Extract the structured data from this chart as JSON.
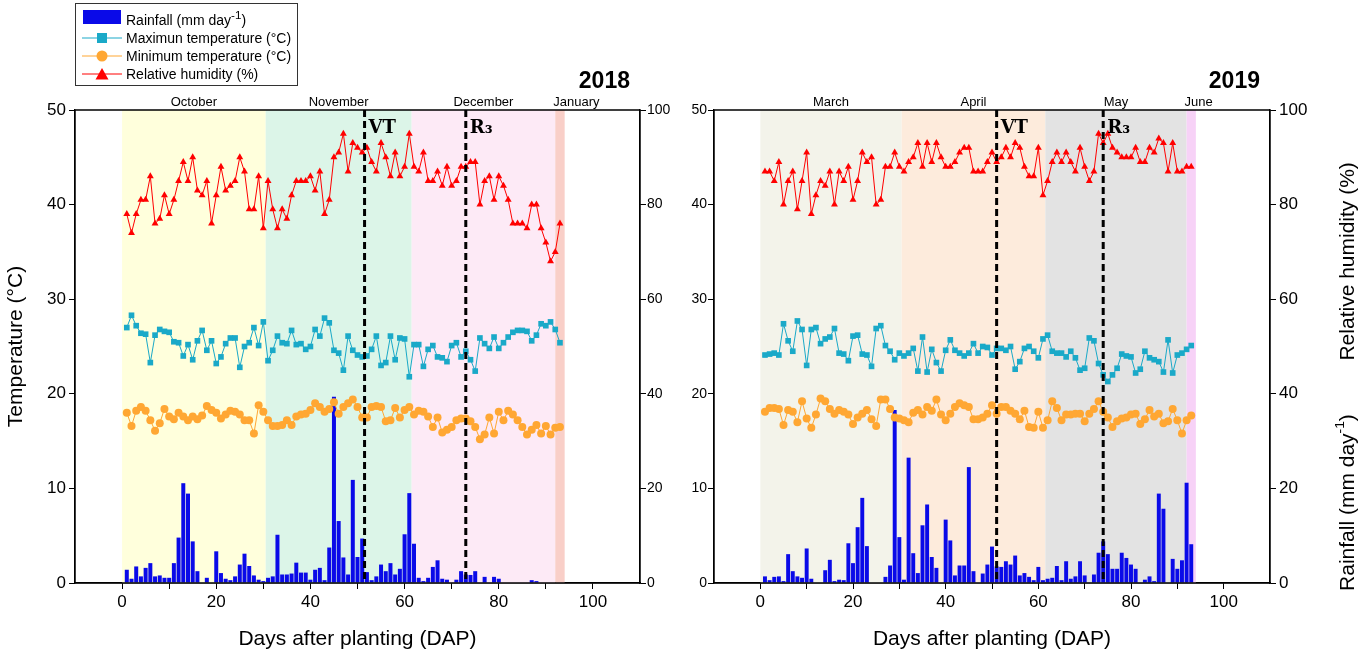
{
  "chart_data": [
    {
      "type": "line",
      "title": "2018",
      "xlabel": "Days after planting (DAP)",
      "ylabel": "Temperature (°C)",
      "legend": "top left",
      "x": [
        1,
        2,
        3,
        4,
        5,
        6,
        7,
        8,
        9,
        10,
        11,
        12,
        13,
        14,
        15,
        16,
        17,
        18,
        19,
        20,
        21,
        22,
        23,
        24,
        25,
        26,
        27,
        28,
        29,
        30,
        31,
        32,
        33,
        34,
        35,
        36,
        37,
        38,
        39,
        40,
        41,
        42,
        43,
        44,
        45,
        46,
        47,
        48,
        49,
        50,
        51,
        52,
        53,
        54,
        55,
        56,
        57,
        58,
        59,
        60,
        61,
        62,
        63,
        64,
        65,
        66,
        67,
        68,
        69,
        70,
        71,
        72,
        73,
        74,
        75,
        76,
        77,
        78,
        79,
        80,
        81,
        82,
        83,
        84,
        85,
        86,
        87,
        88,
        89,
        90,
        91,
        92,
        93
      ],
      "xlim": [
        -10,
        110
      ],
      "xticks": [
        0,
        {
          "value": 10,
          "label": null
        },
        20,
        {
          "value": 30,
          "label": null
        },
        40,
        {
          "value": 50,
          "label": null
        },
        60,
        {
          "value": 70,
          "label": null
        },
        80,
        {
          "value": 90,
          "label": null
        },
        100
      ],
      "ylim": [
        0,
        50
      ],
      "yticks": [
        0,
        10,
        20,
        30,
        40,
        50
      ],
      "y2lim": [
        0,
        100
      ],
      "y2ticks": [
        0,
        20,
        40,
        60,
        80,
        100
      ],
      "series": [
        {
          "name": "Rainfall (mm day$^{-1}$)",
          "type": "bar",
          "axis": "y2",
          "color": "#0a0ae8",
          "values": [
            2.8,
            0.9,
            3.5,
            1.4,
            3.2,
            4.2,
            1.4,
            1.6,
            1.1,
            1.1,
            4.2,
            9.6,
            21.1,
            18.9,
            8.8,
            2.5,
            0,
            1.1,
            null,
            6.7,
            2.1,
            0.9,
            0.6,
            1.4,
            3.9,
            6.2,
            3.6,
            1.6,
            0.7,
            0.4,
            1.1,
            1.4,
            10.2,
            1.8,
            1.8,
            2.0,
            4.3,
            2.2,
            2.2,
            0.7,
            2.8,
            3.2,
            0.6,
            7.5,
            39.4,
            13.1,
            5.4,
            1.8,
            21.8,
            5.5,
            9.4,
            2.3,
            0.6,
            1.4,
            3.9,
            2.5,
            4.2,
            1.8,
            3.0,
            10.3,
            19.0,
            8.3,
            1.1,
            0.4,
            1.1,
            3.4,
            4.8,
            0.9,
            0.7,
            0,
            0.7,
            2.5,
            1.8,
            1.7,
            2.5,
            0,
            1.3,
            0,
            1.3,
            0.9,
            null,
            0,
            0,
            0,
            0,
            0,
            0.6,
            0.4,
            0,
            0,
            0,
            0,
            0
          ]
        },
        {
          "name": "Maximun temperature (°C)",
          "marker": "square",
          "color": "#1aa9c8",
          "values": [
            27.0,
            28.3,
            27.2,
            26.4,
            26.3,
            23.3,
            26.2,
            26.8,
            26.6,
            26.5,
            25.5,
            25.4,
            24.0,
            25.2,
            23.6,
            25.6,
            26.7,
            24.6,
            25.6,
            23.2,
            23.9,
            25.3,
            25.9,
            25.9,
            22.8,
            25.0,
            25.4,
            27.0,
            25.1,
            27.6,
            23.5,
            24.6,
            26.1,
            25.4,
            25.3,
            26.7,
            25.2,
            25.3,
            24.7,
            25.0,
            26.8,
            26.1,
            28.0,
            27.5,
            24.6,
            24.3,
            22.5,
            26.1,
            24.6,
            24.1,
            23.9,
            24.0,
            24.7,
            26.1,
            23.0,
            23.3,
            26.1,
            23.6,
            25.9,
            25.8,
            21.8,
            25.2,
            25.2,
            22.9,
            24.7,
            25.1,
            23.9,
            23.8,
            23.4,
            25.1,
            25.4,
            23.9,
            24.5,
            23.6,
            22.4,
            25.9,
            25.3,
            24.8,
            26.0,
            24.8,
            25.4,
            26.0,
            26.5,
            26.7,
            26.7,
            26.6,
            25.6,
            26.2,
            27.4,
            27.2,
            27.6,
            26.8,
            25.4
          ]
        },
        {
          "name": "Minimum temperature (°C)",
          "marker": "circle",
          "color": "#ffa733",
          "values": [
            18.0,
            16.6,
            18.2,
            18.6,
            18.2,
            17.2,
            16.1,
            16.9,
            18.4,
            17.6,
            17.3,
            18.0,
            17.6,
            17.2,
            17.6,
            17.3,
            17.7,
            18.7,
            18.3,
            18.0,
            17.4,
            17.8,
            18.2,
            18.1,
            17.8,
            17.2,
            17.2,
            15.8,
            18.8,
            18.1,
            17.2,
            16.6,
            16.6,
            16.7,
            17.2,
            16.7,
            17.6,
            17.8,
            17.9,
            18.3,
            19.0,
            18.6,
            18.1,
            18.4,
            19.1,
            17.9,
            18.6,
            19.0,
            19.4,
            18.6,
            17.5,
            17.5,
            18.6,
            18.7,
            18.6,
            17.1,
            17.2,
            18.5,
            17.5,
            18.3,
            18.6,
            17.8,
            18.2,
            18.1,
            17.6,
            16.5,
            17.5,
            15.9,
            16.2,
            16.5,
            17.2,
            17.4,
            17.4,
            17.1,
            16.5,
            15.2,
            15.7,
            17.5,
            15.8,
            18.1,
            17.2,
            18.2,
            17.8,
            17.2,
            16.5,
            15.7,
            16.2,
            16.7,
            15.8,
            16.6,
            15.7,
            16.4,
            16.5
          ]
        },
        {
          "name": "Relative humidity (%)",
          "marker": "triangle",
          "axis": "y2",
          "color": "#ff0000",
          "values": [
            78,
            74,
            78,
            81,
            81,
            86,
            76,
            77,
            82,
            78,
            81,
            85,
            89,
            85,
            90,
            83,
            82,
            85,
            76,
            82,
            88,
            83,
            84,
            85,
            90,
            87,
            79,
            79,
            86,
            75,
            85,
            79,
            75,
            79,
            77,
            82,
            85,
            85,
            85,
            86,
            83,
            87,
            78,
            81,
            90,
            91,
            95,
            87,
            93,
            92,
            91,
            92,
            89,
            87,
            93,
            90,
            86,
            91,
            86,
            88,
            95,
            88,
            87,
            91,
            85,
            85,
            87,
            84,
            88,
            84,
            85,
            88,
            88,
            89,
            89,
            80,
            85,
            86,
            81,
            86,
            84,
            81,
            76,
            76,
            76,
            75,
            80,
            80,
            75,
            72,
            68,
            70,
            76
          ]
        }
      ],
      "bands": [
        {
          "axis": "x",
          "from": 0,
          "to": 30.5,
          "label": "October",
          "color": "#ffffdc"
        },
        {
          "axis": "x",
          "from": 30.5,
          "to": 61.5,
          "label": "November",
          "color": "#dcf5e8"
        },
        {
          "axis": "x",
          "from": 61.5,
          "to": 92,
          "label": "December",
          "color": "#fdeaf6"
        },
        {
          "axis": "x",
          "from": 92,
          "to": 94,
          "label": "January",
          "color": "#f9cfc8"
        }
      ],
      "ref_lines": [
        {
          "axis": "x",
          "value": 51.5,
          "label": "VT",
          "color": "#000000",
          "line_style": "dashed"
        },
        {
          "axis": "x",
          "value": 73,
          "label": "R₃",
          "color": "#000000",
          "line_style": "dashed"
        }
      ]
    },
    {
      "type": "line",
      "title": "2019",
      "xlabel": "Days after planting (DAP)",
      "y2label": "Relative humidity (%)",
      "annotations": [
        "Rainfall (mm day$^{-1}$)"
      ],
      "x": [
        1,
        2,
        3,
        4,
        5,
        6,
        7,
        8,
        9,
        10,
        11,
        12,
        13,
        14,
        15,
        16,
        17,
        18,
        19,
        20,
        21,
        22,
        23,
        24,
        25,
        26,
        27,
        28,
        29,
        30,
        31,
        32,
        33,
        34,
        35,
        36,
        37,
        38,
        39,
        40,
        41,
        42,
        43,
        44,
        45,
        46,
        47,
        48,
        49,
        50,
        51,
        52,
        53,
        54,
        55,
        56,
        57,
        58,
        59,
        60,
        61,
        62,
        63,
        64,
        65,
        66,
        67,
        68,
        69,
        70,
        71,
        72,
        73,
        74,
        75,
        76,
        77,
        78,
        79,
        80,
        81,
        82,
        83,
        84,
        85,
        86,
        87,
        88,
        89,
        90,
        91,
        92,
        93
      ],
      "xlim": [
        -10,
        110
      ],
      "xticks": [
        0,
        {
          "value": 10,
          "label": null
        },
        20,
        {
          "value": 30,
          "label": null
        },
        40,
        {
          "value": 50,
          "label": null
        },
        60,
        {
          "value": 70,
          "label": null
        },
        80,
        {
          "value": 90,
          "label": null
        },
        100
      ],
      "ylim": [
        0,
        50
      ],
      "yticks": [
        0,
        10,
        20,
        30,
        40,
        50
      ],
      "y2lim": [
        0,
        100
      ],
      "y2ticks": [
        0,
        20,
        40,
        60,
        80,
        100
      ],
      "series": [
        {
          "type": "bar",
          "axis": "y2",
          "color": "#0a0ae8",
          "values": [
            1.4,
            0.6,
            1.3,
            1.4,
            0.4,
            6.1,
            2.5,
            1.4,
            1.1,
            7.3,
            0.9,
            0,
            0,
            2.7,
            4.9,
            0.4,
            0.7,
            0.6,
            8.4,
            4.2,
            11.8,
            18.0,
            7.8,
            0,
            0,
            0,
            1.3,
            3.7,
            36.6,
            9.7,
            0.7,
            26.5,
            6.3,
            2.1,
            12.2,
            16.6,
            5.5,
            3.2,
            0,
            13.4,
            9.0,
            1.6,
            3.7,
            3.7,
            24.5,
            2.5,
            null,
            2.0,
            3.9,
            7.7,
            3.5,
            3.4,
            4.6,
            3.9,
            5.8,
            1.6,
            2.1,
            1.3,
            0.6,
            3.4,
            0.6,
            0.9,
            1.1,
            3.6,
            0.6,
            4.6,
            0.9,
            1.4,
            4.6,
            1.6,
            0,
            1.8,
            6.4,
            8.8,
            6.1,
            3.0,
            3.0,
            6.4,
            5.3,
            3.9,
            3.0,
            0,
            0.7,
            1.4,
            0.4,
            18.9,
            15.7,
            0,
            5.1,
            3.0,
            4.8,
            21.2,
            8.2
          ]
        },
        {
          "marker": "square",
          "color": "#1aa9c8",
          "values": [
            24.1,
            24.2,
            24.3,
            24.1,
            27.4,
            25.6,
            24.5,
            27.7,
            26.8,
            23.0,
            26.8,
            27.0,
            25.3,
            25.8,
            26.0,
            26.9,
            24.3,
            24.2,
            23.5,
            26.1,
            26.2,
            24.2,
            24.1,
            22.9,
            26.9,
            27.2,
            25.1,
            24.5,
            23.6,
            24.3,
            24.0,
            24.3,
            24.8,
            22.4,
            26.0,
            22.3,
            24.7,
            23.3,
            22.4,
            24.6,
            25.7,
            24.6,
            24.3,
            24.0,
            24.3,
            25.3,
            24.3,
            25.0,
            24.9,
            24.1,
            24.8,
            24.8,
            24.6,
            25.0,
            22.6,
            23.4,
            24.8,
            25.0,
            24.5,
            23.8,
            25.8,
            26.2,
            24.5,
            24.3,
            24.3,
            23.9,
            24.5,
            23.8,
            22.5,
            22.7,
            25.9,
            25.6,
            23.2,
            22.0,
            21.3,
            22.0,
            22.7,
            24.2,
            24.0,
            23.9,
            22.2,
            22.6,
            24.5,
            23.8,
            23.6,
            23.4,
            22.3,
            25.7,
            22.2,
            24.1,
            24.3,
            24.7,
            25.1
          ]
        },
        {
          "marker": "circle",
          "color": "#ffa733",
          "values": [
            18.1,
            18.5,
            18.5,
            18.4,
            16.7,
            18.3,
            18.1,
            17.0,
            19.2,
            17.4,
            16.4,
            17.8,
            19.5,
            19.2,
            18.4,
            17.9,
            18.3,
            18.1,
            17.8,
            16.8,
            17.5,
            17.9,
            18.3,
            17.3,
            16.6,
            19.4,
            19.4,
            18.4,
            17.5,
            17.4,
            17.2,
            17.0,
            18.0,
            18.3,
            17.8,
            18.6,
            18.2,
            19.4,
            17.8,
            17.2,
            17.9,
            18.6,
            19.0,
            18.8,
            18.6,
            17.3,
            17.3,
            17.5,
            17.9,
            18.8,
            17.9,
            18.6,
            18.6,
            18.2,
            17.9,
            17.3,
            18.2,
            16.5,
            16.4,
            18.1,
            16.4,
            17.2,
            19.2,
            18.5,
            17.2,
            17.8,
            17.8,
            17.9,
            17.9,
            17.1,
            17.9,
            18.4,
            19.2,
            18.1,
            17.5,
            16.5,
            17.1,
            17.4,
            17.5,
            17.8,
            17.9,
            16.8,
            17.3,
            18.3,
            17.6,
            17.9,
            16.9,
            17.1,
            18.4,
            17.2,
            15.8,
            17.2,
            17.7
          ]
        },
        {
          "marker": "triangle",
          "axis": "y2",
          "color": "#ff0000",
          "values": [
            87,
            87,
            85,
            89,
            80,
            85,
            87,
            79,
            85,
            91,
            78,
            82,
            85,
            84,
            87,
            80,
            87,
            85,
            88,
            81,
            85,
            91,
            89,
            90,
            80,
            81,
            88,
            88,
            91,
            88,
            87,
            89,
            90,
            93,
            88,
            93,
            89,
            93,
            90,
            88,
            88,
            89,
            91,
            92,
            92,
            87,
            87,
            87,
            89,
            91,
            89,
            90,
            92,
            90,
            93,
            92,
            88,
            86,
            86,
            92,
            82,
            85,
            89,
            91,
            89,
            91,
            89,
            87,
            92,
            88,
            85,
            87,
            95,
            93,
            95,
            92,
            91,
            90,
            90,
            90,
            92,
            89,
            89,
            92,
            91,
            94,
            93,
            87,
            93,
            87,
            87,
            88,
            88
          ]
        }
      ],
      "bands": [
        {
          "axis": "x",
          "from": 0,
          "to": 30.5,
          "label": "March",
          "color": "#f3f3ea"
        },
        {
          "axis": "x",
          "from": 30.5,
          "to": 61.5,
          "label": "April",
          "color": "#fdebdc"
        },
        {
          "axis": "x",
          "from": 61.5,
          "to": 92,
          "label": "May",
          "color": "#e3e3e3"
        },
        {
          "axis": "x",
          "from": 92,
          "to": 94,
          "label": "June",
          "color": "#f7d2f7"
        }
      ],
      "ref_lines": [
        {
          "axis": "x",
          "value": 51,
          "label": "VT",
          "color": "#000000",
          "line_style": "dashed"
        },
        {
          "axis": "x",
          "value": 74,
          "label": "R₃",
          "color": "#000000",
          "line_style": "dashed"
        }
      ]
    }
  ]
}
